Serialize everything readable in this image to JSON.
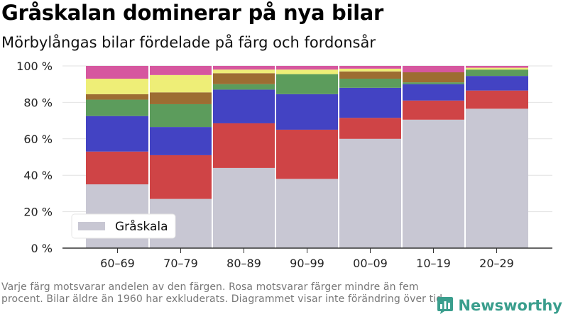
{
  "title": "Gråskalan dominerar på nya bilar",
  "subtitle": "Mörbylångas bilar fördelade på färg och fordonsår",
  "footnote": "Varje färg motsvarar andelen av den färgen. Rosa motsvarar färger mindre än fem procent. Bilar äldre än 1960 har exkluderats. Diagrammet visar inte förändring över tid.",
  "brand": {
    "name": "Newsworthy",
    "icon": "newsworthy-logo-icon",
    "color": "#3a9e8d"
  },
  "chart_data": {
    "type": "bar",
    "stacked": true,
    "categories": [
      "60–69",
      "70–79",
      "80–89",
      "90–99",
      "00–09",
      "10–19",
      "20–29"
    ],
    "yticks": [
      "0 %",
      "20 %",
      "40 %",
      "60 %",
      "80 %",
      "100 %"
    ],
    "ylim": [
      0,
      100
    ],
    "xlabel": "",
    "ylabel": "",
    "grid": true,
    "legend": {
      "position": "bottom-left",
      "entries": [
        "Gråskala"
      ]
    },
    "series": [
      {
        "name": "Gråskala",
        "color": "#c8c7d3",
        "values": [
          35,
          27,
          44,
          38,
          60,
          70.5,
          76.5
        ]
      },
      {
        "color": "#cf4446",
        "values": [
          18,
          24,
          24.5,
          27,
          11.5,
          10.5,
          10
        ]
      },
      {
        "color": "#4343c3",
        "values": [
          19.5,
          15.5,
          18.5,
          19.5,
          16.5,
          9,
          8
        ]
      },
      {
        "color": "#5c9c5c",
        "values": [
          9,
          12.5,
          3,
          11,
          5,
          1,
          3.5
        ]
      },
      {
        "color": "#9d6d32",
        "values": [
          3,
          6.5,
          6,
          0,
          4,
          5.5,
          0
        ]
      },
      {
        "color": "#eeee77",
        "values": [
          8.5,
          9.5,
          2,
          2.5,
          1.5,
          0,
          1
        ]
      },
      {
        "color": "#d6579f",
        "values": [
          7,
          5,
          2,
          2,
          1.5,
          3.5,
          1
        ]
      }
    ]
  }
}
